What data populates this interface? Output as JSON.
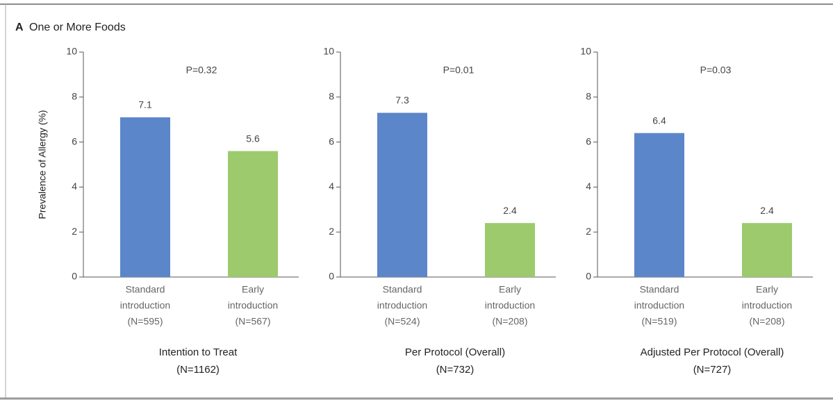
{
  "figure_title": {
    "label": "A",
    "text": "One or More Foods"
  },
  "chart_data": [
    {
      "type": "bar",
      "title": "Intention to Treat",
      "subtitle": "(N=1162)",
      "annotation": "P=0.32",
      "y_label": "Prevalence of Allergy (%)",
      "categories": [
        [
          "Standard",
          "introduction",
          "(N=595)"
        ],
        [
          "Early",
          "introduction",
          "(N=567)"
        ]
      ],
      "values": [
        7.1,
        5.6
      ],
      "colors": [
        "#5b86c9",
        "#9dca6c"
      ],
      "ylim": [
        0,
        10
      ],
      "yticks": [
        0,
        2,
        4,
        6,
        8,
        10
      ]
    },
    {
      "type": "bar",
      "title": "Per Protocol (Overall)",
      "subtitle": "(N=732)",
      "annotation": "P=0.01",
      "categories": [
        [
          "Standard",
          "introduction",
          "(N=524)"
        ],
        [
          "Early",
          "introduction",
          "(N=208)"
        ]
      ],
      "values": [
        7.3,
        2.4
      ],
      "colors": [
        "#5b86c9",
        "#9dca6c"
      ],
      "ylim": [
        0,
        10
      ],
      "yticks": [
        0,
        2,
        4,
        6,
        8,
        10
      ]
    },
    {
      "type": "bar",
      "title": "Adjusted Per Protocol (Overall)",
      "subtitle": "(N=727)",
      "annotation": "P=0.03",
      "categories": [
        [
          "Standard",
          "introduction",
          "(N=519)"
        ],
        [
          "Early",
          "introduction",
          "(N=208)"
        ]
      ],
      "values": [
        6.4,
        2.4
      ],
      "colors": [
        "#5b86c9",
        "#9dca6c"
      ],
      "ylim": [
        0,
        10
      ],
      "yticks": [
        0,
        2,
        4,
        6,
        8,
        10
      ]
    }
  ]
}
